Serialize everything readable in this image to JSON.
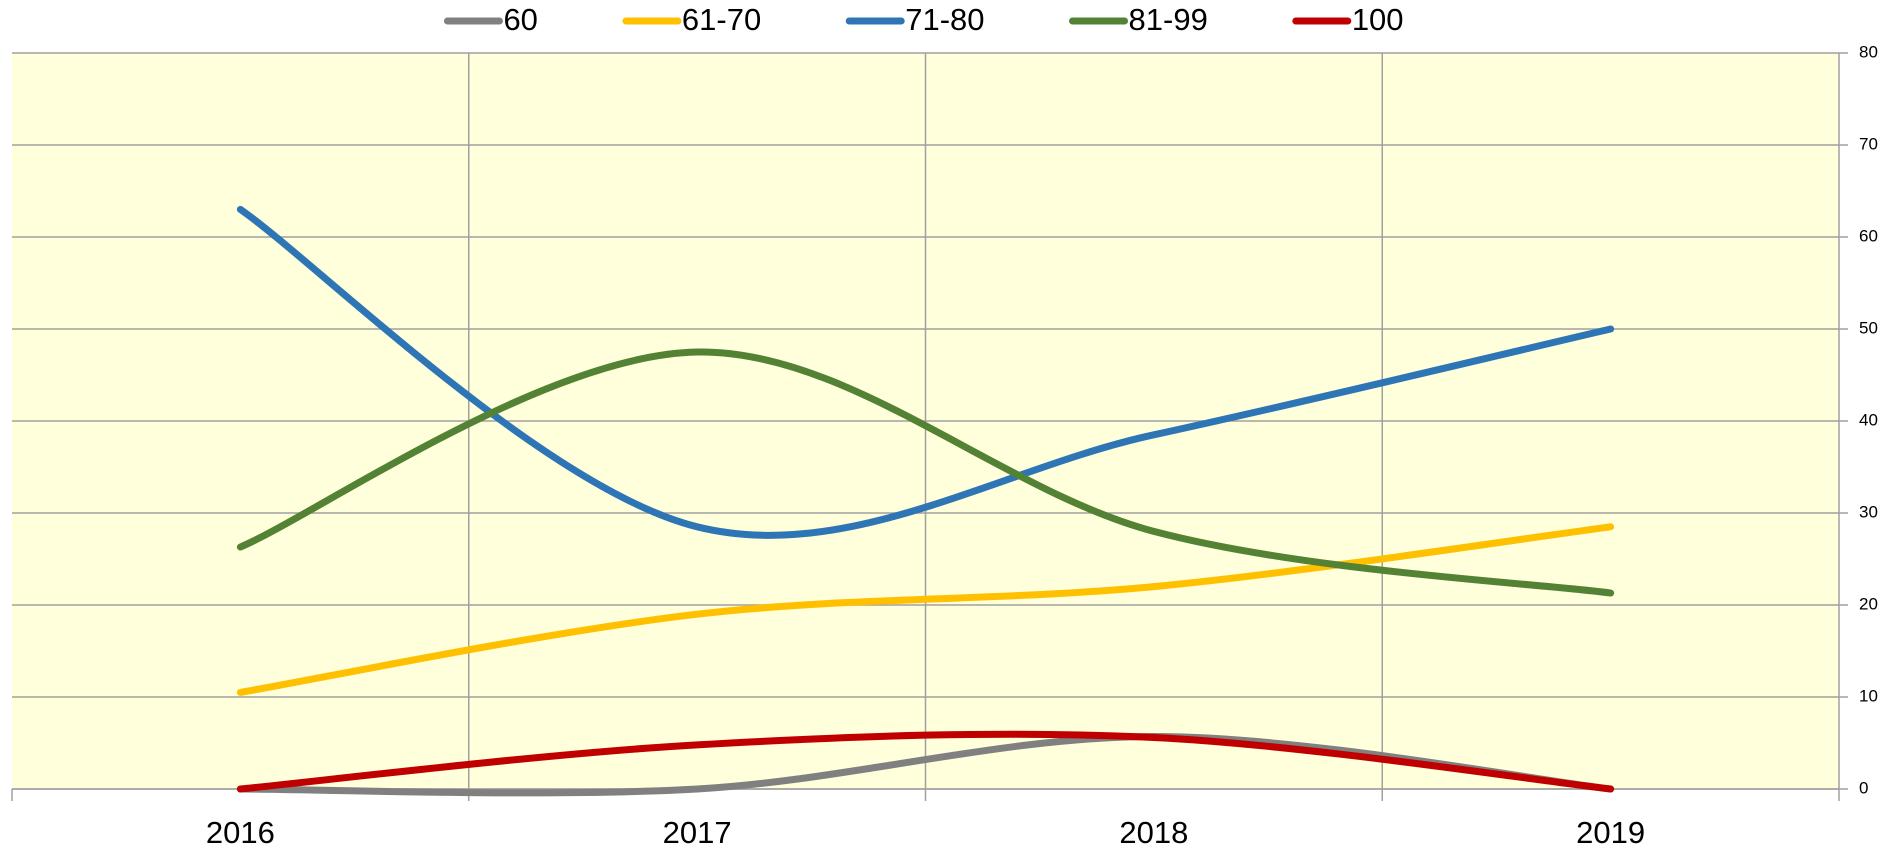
{
  "chart_data": {
    "type": "line",
    "categories": [
      "2016",
      "2017",
      "2018",
      "2019"
    ],
    "series": [
      {
        "name": "60",
        "color": "#808080",
        "values": [
          0,
          0,
          5.7,
          0
        ]
      },
      {
        "name": "61-70",
        "color": "#ffc000",
        "values": [
          10.5,
          19,
          22,
          28.5
        ]
      },
      {
        "name": "71-80",
        "color": "#2e75b6",
        "values": [
          63,
          28.5,
          38.5,
          50
        ]
      },
      {
        "name": "81-99",
        "color": "#548235",
        "values": [
          26.3,
          47.5,
          28,
          21.3
        ]
      },
      {
        "name": "100",
        "color": "#c00000",
        "values": [
          0,
          4.8,
          5.6,
          0
        ]
      }
    ],
    "ylim": [
      0,
      80
    ],
    "yticks": [
      0,
      10,
      20,
      30,
      40,
      50,
      60,
      70,
      80
    ],
    "grid": true,
    "smooth": true,
    "legend": "top",
    "background": "#ffffdb"
  }
}
